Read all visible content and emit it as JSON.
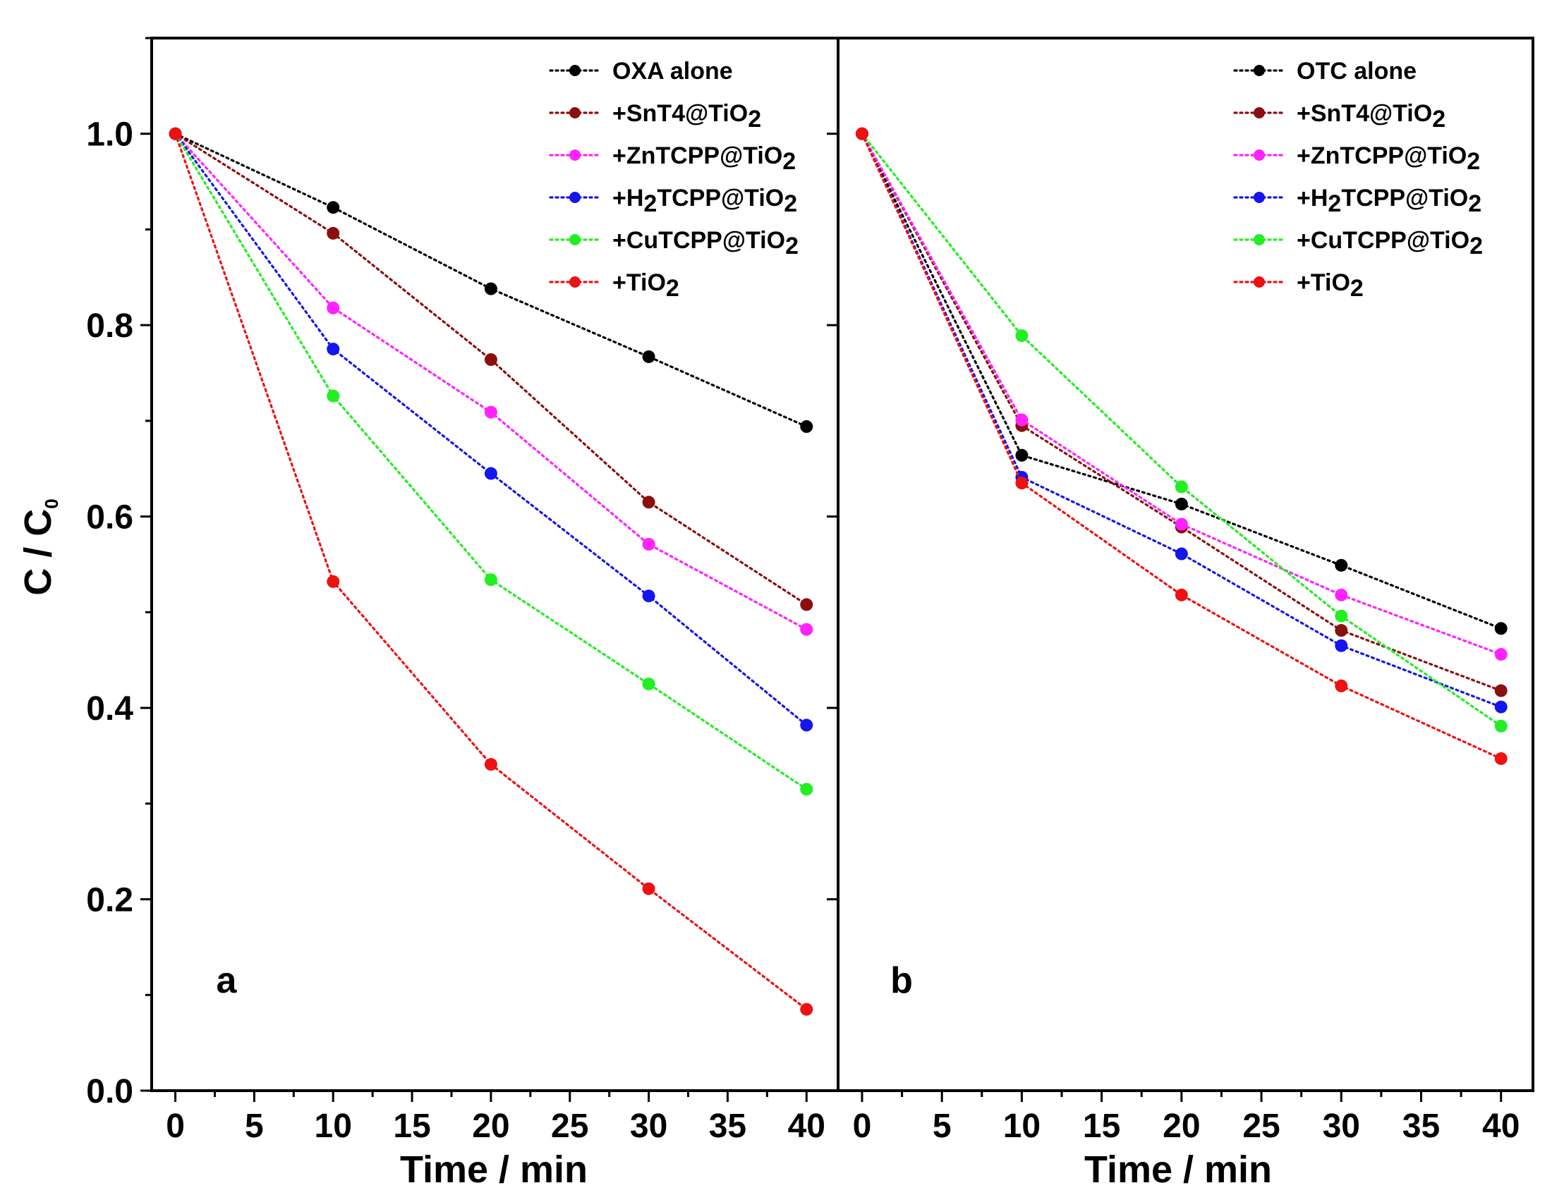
{
  "y_axis_title": "C / C",
  "y_axis_title_sub": "0",
  "chart_data": [
    {
      "type": "line",
      "panel_label": "a",
      "xlabel": "Time / min",
      "ylabel": "C / C0",
      "xlim": [
        -1.5,
        42
      ],
      "ylim": [
        0,
        1.1
      ],
      "x_ticks": [
        0,
        5,
        10,
        15,
        20,
        25,
        30,
        35,
        40
      ],
      "x_tick_labels": [
        "0",
        "5",
        "10",
        "15",
        "20",
        "25",
        "30",
        "35",
        "40"
      ],
      "y_ticks": [
        0,
        0.2,
        0.4,
        0.6,
        0.8,
        1.0
      ],
      "y_tick_labels": [
        "0.0",
        "0.2",
        "0.4",
        "0.6",
        "0.8",
        "1.0"
      ],
      "x": [
        0,
        10,
        20,
        30,
        40
      ],
      "legend_position": "top-right",
      "series": [
        {
          "name": "OXA alone",
          "label_main": "OXA alone",
          "label_sub": "",
          "label_tail": "",
          "color": "#000000",
          "values": [
            1.0,
            0.923,
            0.838,
            0.767,
            0.694
          ]
        },
        {
          "name": "+SnT4@TiO2",
          "label_main": "+SnT4@TiO",
          "label_sub": "2",
          "label_tail": "",
          "color": "#8b0f0f",
          "values": [
            1.0,
            0.896,
            0.764,
            0.615,
            0.508
          ]
        },
        {
          "name": "+ZnTCPP@TiO2",
          "label_main": "+ZnTCPP@TiO",
          "label_sub": "2",
          "label_tail": "",
          "color": "#ff22ff",
          "values": [
            1.0,
            0.818,
            0.709,
            0.571,
            0.482
          ]
        },
        {
          "name": "+H2TCPP@TiO2",
          "label_main": "+H",
          "label_sub": "2",
          "label_tail": "TCPP@TiO2",
          "color": "#1515ee",
          "values": [
            1.0,
            0.775,
            0.645,
            0.517,
            0.382
          ]
        },
        {
          "name": "+CuTCPP@TiO2",
          "label_main": "+CuTCPP@TiO",
          "label_sub": "2",
          "label_tail": "",
          "color": "#22ee22",
          "values": [
            1.0,
            0.726,
            0.534,
            0.425,
            0.315
          ]
        },
        {
          "name": "+TiO2",
          "label_main": "+TiO",
          "label_sub": "2",
          "label_tail": "",
          "color": "#ee1111",
          "values": [
            1.0,
            0.532,
            0.341,
            0.211,
            0.085
          ]
        }
      ]
    },
    {
      "type": "line",
      "panel_label": "b",
      "xlabel": "Time / min",
      "ylabel": "C / C0",
      "xlim": [
        -1.5,
        42
      ],
      "ylim": [
        0,
        1.1
      ],
      "x_ticks": [
        0,
        5,
        10,
        15,
        20,
        25,
        30,
        35,
        40
      ],
      "x_tick_labels": [
        "0",
        "5",
        "10",
        "15",
        "20",
        "25",
        "30",
        "35",
        "40"
      ],
      "y_ticks": [
        0,
        0.2,
        0.4,
        0.6,
        0.8,
        1.0
      ],
      "y_tick_labels": [],
      "x": [
        0,
        10,
        20,
        30,
        40
      ],
      "legend_position": "top-right",
      "series": [
        {
          "name": "OTC alone",
          "label_main": "OTC alone",
          "label_sub": "",
          "label_tail": "",
          "color": "#000000",
          "values": [
            1.0,
            0.664,
            0.613,
            0.549,
            0.483
          ]
        },
        {
          "name": "+SnT4@TiO2",
          "label_main": "+SnT4@TiO",
          "label_sub": "2",
          "label_tail": "",
          "color": "#8b0f0f",
          "values": [
            1.0,
            0.695,
            0.589,
            0.481,
            0.418
          ]
        },
        {
          "name": "+ZnTCPP@TiO2",
          "label_main": "+ZnTCPP@TiO",
          "label_sub": "2",
          "label_tail": "",
          "color": "#ff22ff",
          "values": [
            1.0,
            0.701,
            0.592,
            0.518,
            0.456
          ]
        },
        {
          "name": "+H2TCPP@TiO2",
          "label_main": "+H",
          "label_sub": "2",
          "label_tail": "TCPP@TiO2",
          "color": "#1515ee",
          "values": [
            1.0,
            0.641,
            0.561,
            0.465,
            0.401
          ]
        },
        {
          "name": "+CuTCPP@TiO2",
          "label_main": "+CuTCPP@TiO",
          "label_sub": "2",
          "label_tail": "",
          "color": "#22ee22",
          "values": [
            1.0,
            0.789,
            0.631,
            0.496,
            0.381
          ]
        },
        {
          "name": "+TiO2",
          "label_main": "+TiO",
          "label_sub": "2",
          "label_tail": "",
          "color": "#ee1111",
          "values": [
            1.0,
            0.635,
            0.518,
            0.423,
            0.347
          ]
        }
      ]
    }
  ]
}
